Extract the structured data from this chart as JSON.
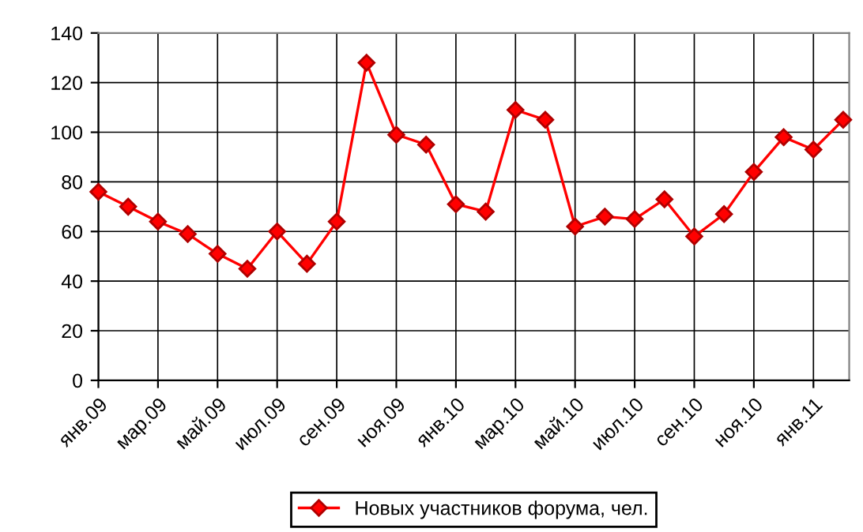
{
  "chart_data": {
    "type": "line",
    "categories": [
      "янв.09",
      null,
      "мар.09",
      null,
      "май.09",
      null,
      "июл.09",
      null,
      "сен.09",
      null,
      "ноя.09",
      null,
      "янв.10",
      null,
      "мар.10",
      null,
      "май.10",
      null,
      "июл.10",
      null,
      "сен.10",
      null,
      "ноя.10",
      null,
      "янв.11",
      null
    ],
    "series": [
      {
        "name": "Новых участников форума, чел.",
        "color": "#ff0000",
        "values": [
          76,
          70,
          64,
          59,
          51,
          45,
          60,
          47,
          64,
          128,
          99,
          95,
          71,
          68,
          109,
          105,
          62,
          66,
          65,
          73,
          58,
          67,
          84,
          98,
          93,
          105
        ]
      }
    ],
    "ylim": [
      0,
      140
    ],
    "yticks": [
      0,
      20,
      40,
      60,
      80,
      100,
      120,
      140
    ],
    "grid": true,
    "legend": "bottom",
    "marker": "diamond",
    "line_style": "solid"
  }
}
